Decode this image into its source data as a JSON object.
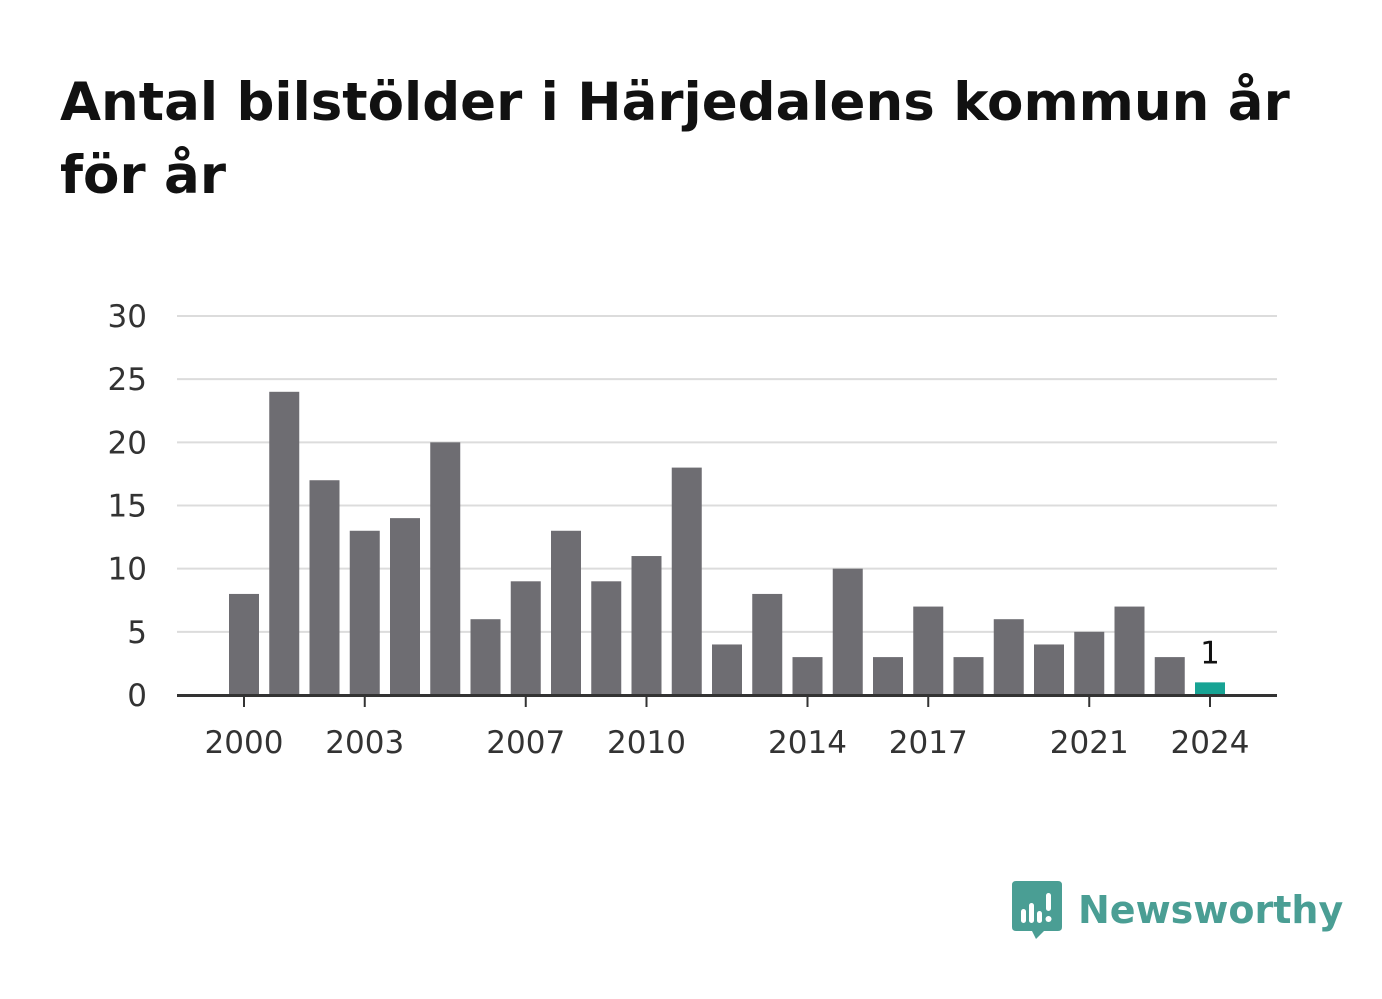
{
  "title": "Antal bilstölder i Härjedalens kommun år för år",
  "brand": {
    "name": "Newsworthy",
    "icon": "speech-bubble-bar-chart-icon",
    "color": "#4a9e94"
  },
  "colors": {
    "bar": "#6e6d72",
    "highlight": "#17a394",
    "grid": "#dcdcdc",
    "axis": "#333333"
  },
  "chart_data": {
    "type": "bar",
    "title": "Antal bilstölder i Härjedalens kommun år för år",
    "xlabel": "",
    "ylabel": "",
    "categories": [
      "2000",
      "2001",
      "2002",
      "2003",
      "2004",
      "2005",
      "2006",
      "2007",
      "2008",
      "2009",
      "2010",
      "2011",
      "2012",
      "2013",
      "2014",
      "2015",
      "2016",
      "2017",
      "2018",
      "2019",
      "2020",
      "2021",
      "2022",
      "2023",
      "2024"
    ],
    "values": [
      8,
      24,
      17,
      13,
      14,
      20,
      6,
      9,
      13,
      9,
      11,
      18,
      4,
      8,
      3,
      10,
      3,
      7,
      3,
      6,
      4,
      5,
      7,
      3,
      1
    ],
    "x_tick_labels": [
      "2000",
      "2003",
      "2007",
      "2010",
      "2014",
      "2017",
      "2021",
      "2024"
    ],
    "y_ticks": [
      0,
      5,
      10,
      15,
      20,
      25,
      30
    ],
    "ylim": [
      0,
      30
    ],
    "grid": true,
    "highlight": {
      "category": "2024",
      "label": "1"
    }
  }
}
